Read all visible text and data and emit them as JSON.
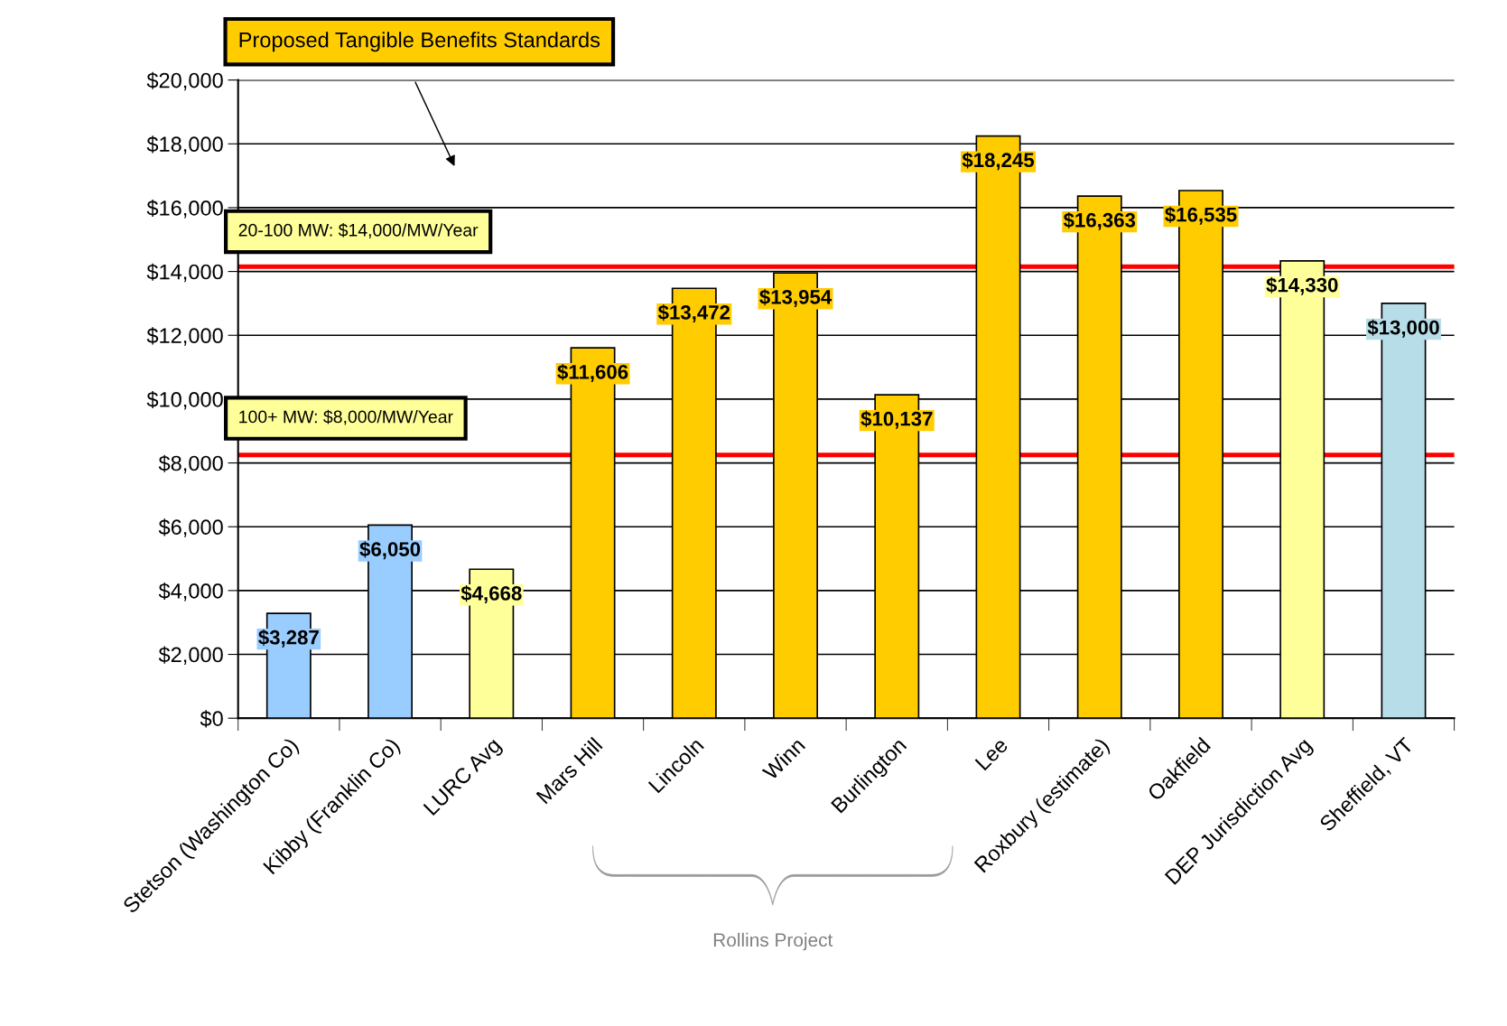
{
  "chart_data": {
    "type": "bar",
    "categories": [
      "Stetson (Washington Co)",
      "Kibby (Franklin Co)",
      "LURC Avg",
      "Mars Hill",
      "Lincoln",
      "Winn",
      "Burlington",
      "Lee",
      "Roxbury (estimate)",
      "Oakfield",
      "DEP Jurisdiction Avg",
      "Sheffield, VT"
    ],
    "values": [
      3287,
      6050,
      4668,
      11606,
      13472,
      13954,
      10137,
      18245,
      16363,
      16535,
      14330,
      13000
    ],
    "colors": [
      "#99ccff",
      "#99ccff",
      "#ffff99",
      "#ffcc00",
      "#ffcc00",
      "#ffcc00",
      "#ffcc00",
      "#ffcc00",
      "#ffcc00",
      "#ffcc00",
      "#ffff99",
      "#b7dde8"
    ],
    "value_labels": [
      "$3,287",
      "$6,050",
      "$4,668",
      "$11,606",
      "$13,472",
      "$13,954",
      "$10,137",
      "$18,245",
      "$16,363",
      "$16,535",
      "$14,330",
      "$13,000"
    ],
    "ylim": [
      0,
      20000
    ],
    "yticks": [
      {
        "value": 0,
        "label": "$0"
      },
      {
        "value": 2000,
        "label": "$2,000"
      },
      {
        "value": 4000,
        "label": "$4,000"
      },
      {
        "value": 6000,
        "label": "$6,000"
      },
      {
        "value": 8000,
        "label": "$8,000"
      },
      {
        "value": 10000,
        "label": "$10,000"
      },
      {
        "value": 12000,
        "label": "$12,000"
      },
      {
        "value": 14000,
        "label": "$14,000"
      },
      {
        "value": 16000,
        "label": "$16,000"
      },
      {
        "value": 18000,
        "label": "$18,000"
      },
      {
        "value": 20000,
        "label": "$20,000"
      }
    ],
    "grid": "y",
    "ref_lines": [
      {
        "axis": "y",
        "value": 14150,
        "color": "#ff0000"
      },
      {
        "axis": "y",
        "value": 8250,
        "color": "#ff0000"
      }
    ],
    "annotations": [
      "Proposed Tangible Benefits Standards",
      "Rollins Project",
      "20-100 MW: $14,000/MW/Year",
      "100+ MW: $8,000/MW/Year"
    ]
  }
}
